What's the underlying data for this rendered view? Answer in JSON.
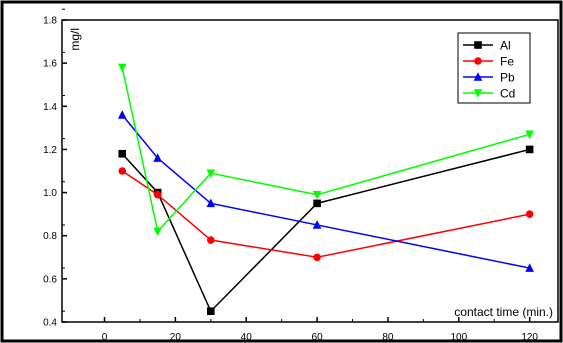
{
  "chart_data": {
    "type": "line",
    "xlabel": "contact time (min.)",
    "ylabel": "mg/l",
    "xlim": [
      -12,
      128
    ],
    "ylim": [
      0.4,
      1.8
    ],
    "xticks": [
      0,
      20,
      40,
      60,
      80,
      100,
      120
    ],
    "yticks": [
      0.4,
      0.6,
      0.8,
      1.0,
      1.2,
      1.4,
      1.6,
      1.8
    ],
    "xtick_labels": [
      "0",
      "20",
      "40",
      "60",
      "80",
      "100",
      "120"
    ],
    "ytick_labels": [
      "0.4",
      "0.6",
      "0.8",
      "1.0",
      "1.2",
      "1.4",
      "1.6",
      "1.8"
    ],
    "x": [
      5,
      15,
      30,
      60,
      120
    ],
    "legend_position": "top-right",
    "grid": false,
    "series": [
      {
        "name": "Al",
        "values": [
          1.18,
          1.0,
          0.45,
          0.95,
          1.2
        ],
        "color": "#000000",
        "marker": "square"
      },
      {
        "name": "Fe",
        "values": [
          1.1,
          0.99,
          0.78,
          0.7,
          0.9
        ],
        "color": "#ff0000",
        "marker": "circle"
      },
      {
        "name": "Pb",
        "values": [
          1.36,
          1.16,
          0.95,
          0.85,
          0.65
        ],
        "color": "#0000ff",
        "marker": "triangle-up"
      },
      {
        "name": "Cd",
        "values": [
          1.58,
          0.82,
          1.09,
          0.99,
          1.27
        ],
        "color": "#00ff00",
        "marker": "triangle-down"
      }
    ]
  }
}
